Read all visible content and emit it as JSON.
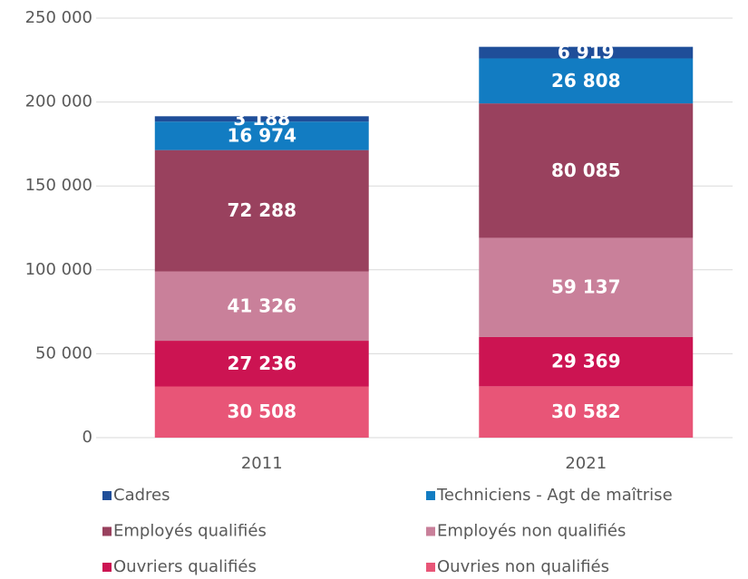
{
  "chart_data": {
    "type": "stacked_bar",
    "categories": [
      "2011",
      "2021"
    ],
    "series": [
      {
        "name": "Ouvries non qualifiés",
        "color": "#e85577",
        "values": [
          30508,
          30582
        ],
        "value_labels": [
          "30 508",
          "30 582"
        ]
      },
      {
        "name": "Ouvriers qualifiés",
        "color": "#cc1452",
        "values": [
          27236,
          29369
        ],
        "value_labels": [
          "27 236",
          "29 369"
        ]
      },
      {
        "name": "Employés non qualifiés",
        "color": "#c9809a",
        "values": [
          41326,
          59137
        ],
        "value_labels": [
          "41 326",
          "59 137"
        ]
      },
      {
        "name": "Employés qualifiés",
        "color": "#99415e",
        "values": [
          72288,
          80085
        ],
        "value_labels": [
          "72 288",
          "80 085"
        ]
      },
      {
        "name": "Techniciens - Agt de maîtrise",
        "color": "#127cc2",
        "values": [
          16974,
          26808
        ],
        "value_labels": [
          "16 974",
          "26 808"
        ]
      },
      {
        "name": "Cadres",
        "color": "#1f4e99",
        "values": [
          3188,
          6919
        ],
        "value_labels": [
          "3 188",
          "6 919"
        ]
      }
    ],
    "ylim": [
      0,
      250000
    ],
    "yticks": [
      0,
      {
        "value": 50000,
        "label": "50 000"
      },
      {
        "value": 100000,
        "label": "100 000"
      },
      {
        "value": 150000,
        "label": "150 000"
      },
      {
        "value": 200000,
        "label": "200 000"
      },
      {
        "value": 250000,
        "label": "250 000"
      }
    ],
    "grid": true
  }
}
